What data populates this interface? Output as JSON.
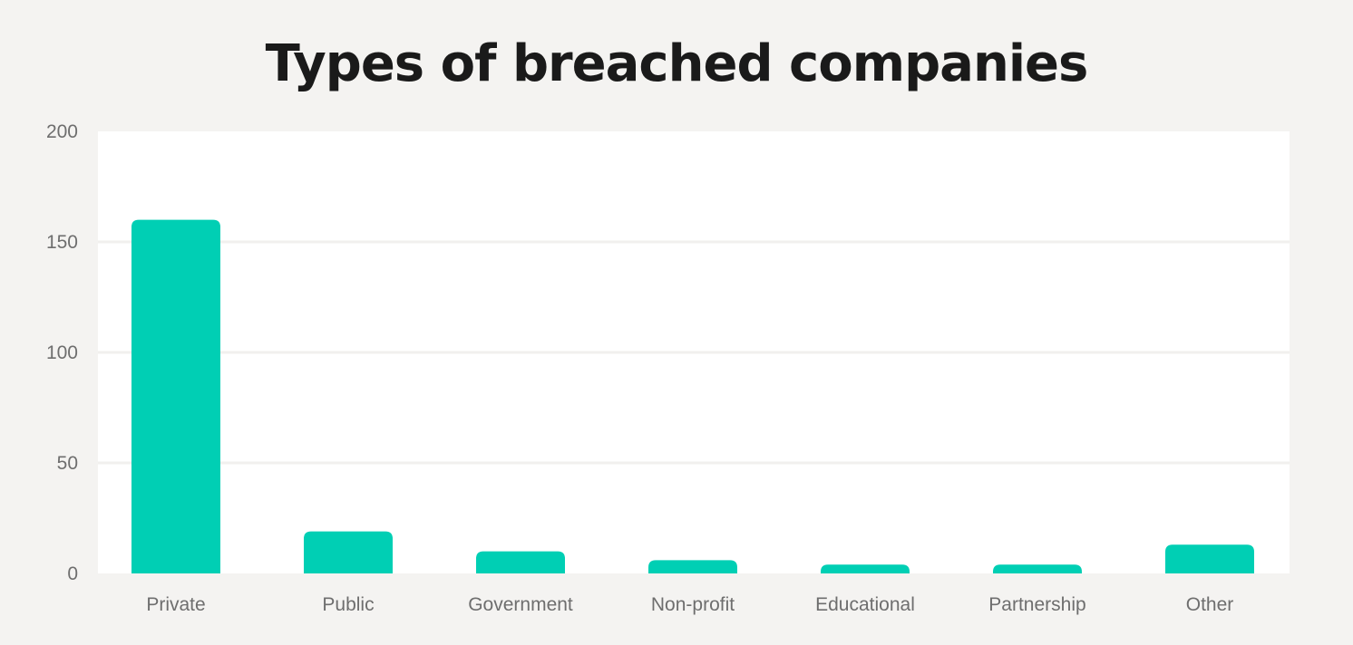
{
  "chart_data": {
    "type": "bar",
    "title": "Types of breached companies",
    "xlabel": "",
    "ylabel": "",
    "categories": [
      "Private",
      "Public",
      "Government",
      "Non-profit",
      "Educational",
      "Partnership",
      "Other"
    ],
    "values": [
      160,
      19,
      10,
      6,
      4,
      4,
      13
    ],
    "ylim": [
      0,
      200
    ],
    "yticks": [
      0,
      50,
      100,
      150,
      200
    ],
    "grid": true,
    "colors": {
      "bar": "#00cfb4",
      "plot_background": "#ffffff",
      "page_background": "#f4f3f1",
      "gridline": "#f1f0ee",
      "tick_text": "#6e6e6e",
      "title_text": "#1a1a1a"
    }
  }
}
